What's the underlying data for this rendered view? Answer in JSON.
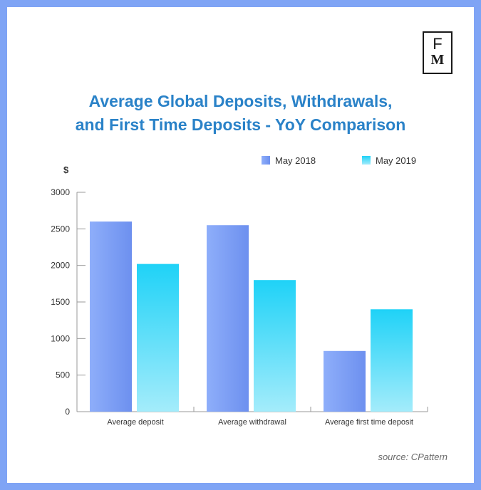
{
  "logo": {
    "line1": "F",
    "line2": "M"
  },
  "title_lines": [
    "Average Global Deposits, Withdrawals,",
    "and First Time Deposits - YoY Comparison"
  ],
  "source": "source: CPattern",
  "colors": {
    "frame": "#7fa4f5",
    "title": "#2a82c8",
    "series_2018_top": "#80a3f6",
    "series_2018_bottom": "#6f93f0",
    "series_2019_top": "#1fd2f7",
    "series_2019_bottom": "#a4ecfb"
  },
  "chart_data": {
    "type": "bar",
    "title": "Average Global Deposits, Withdrawals, and First Time Deposits - YoY Comparison",
    "ylabel": "$",
    "xlabel": "",
    "categories": [
      "Average deposit",
      "Average withdrawal",
      "Average first time deposit"
    ],
    "series": [
      {
        "name": "May 2018",
        "values": [
          2600,
          2550,
          830
        ]
      },
      {
        "name": "May 2019",
        "values": [
          2020,
          1800,
          1400
        ]
      }
    ],
    "ylim": [
      0,
      3000
    ],
    "yticks": [
      0,
      500,
      1000,
      1500,
      2000,
      2500,
      3000
    ],
    "legend": "top-right",
    "grid": false
  }
}
